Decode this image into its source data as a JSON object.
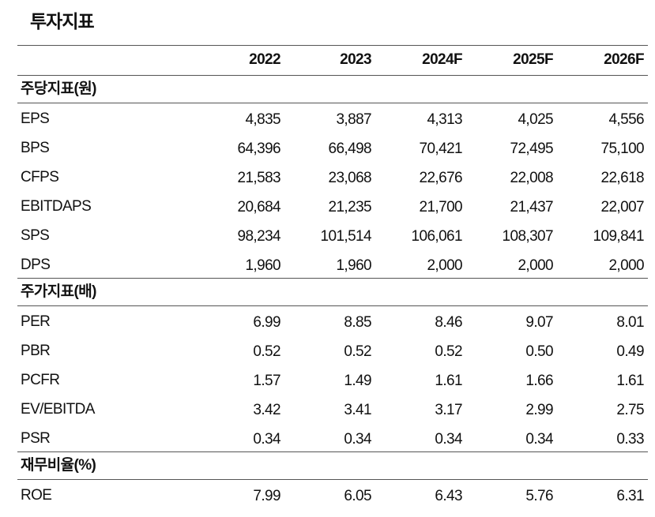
{
  "title": "투자지표",
  "table": {
    "columns": [
      "2022",
      "2023",
      "2024F",
      "2025F",
      "2026F"
    ],
    "sections": [
      {
        "label": "주당지표(원)",
        "rows": [
          {
            "label": "EPS",
            "values": [
              "4,835",
              "3,887",
              "4,313",
              "4,025",
              "4,556"
            ]
          },
          {
            "label": "BPS",
            "values": [
              "64,396",
              "66,498",
              "70,421",
              "72,495",
              "75,100"
            ]
          },
          {
            "label": "CFPS",
            "values": [
              "21,583",
              "23,068",
              "22,676",
              "22,008",
              "22,618"
            ]
          },
          {
            "label": "EBITDAPS",
            "values": [
              "20,684",
              "21,235",
              "21,700",
              "21,437",
              "22,007"
            ]
          },
          {
            "label": "SPS",
            "values": [
              "98,234",
              "101,514",
              "106,061",
              "108,307",
              "109,841"
            ]
          },
          {
            "label": "DPS",
            "values": [
              "1,960",
              "1,960",
              "2,000",
              "2,000",
              "2,000"
            ]
          }
        ]
      },
      {
        "label": "주가지표(배)",
        "rows": [
          {
            "label": "PER",
            "values": [
              "6.99",
              "8.85",
              "8.46",
              "9.07",
              "8.01"
            ]
          },
          {
            "label": "PBR",
            "values": [
              "0.52",
              "0.52",
              "0.52",
              "0.50",
              "0.49"
            ]
          },
          {
            "label": "PCFR",
            "values": [
              "1.57",
              "1.49",
              "1.61",
              "1.66",
              "1.61"
            ]
          },
          {
            "label": "EV/EBITDA",
            "values": [
              "3.42",
              "3.41",
              "3.17",
              "2.99",
              "2.75"
            ]
          },
          {
            "label": "PSR",
            "values": [
              "0.34",
              "0.34",
              "0.34",
              "0.34",
              "0.33"
            ]
          }
        ]
      },
      {
        "label": "재무비율(%)",
        "rows": [
          {
            "label": "ROE",
            "values": [
              "7.99",
              "6.05",
              "6.43",
              "5.76",
              "6.31"
            ]
          }
        ]
      }
    ]
  }
}
